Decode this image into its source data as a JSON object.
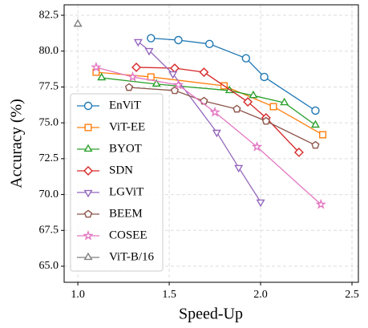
{
  "chart_data": {
    "type": "line",
    "x_label": "Speed-Up",
    "y_label": "Accuracy (%)",
    "xlim": [
      0.925,
      2.535
    ],
    "ylim": [
      63.88,
      83.23
    ],
    "xticks": [
      {
        "value": 1,
        "label": "1.0"
      },
      1.5,
      {
        "value": 2,
        "label": "2.0"
      },
      2.5
    ],
    "yticks": [
      {
        "value": 65,
        "label": "65.0"
      },
      67.5,
      {
        "value": 70,
        "label": "70.0"
      },
      72.5,
      {
        "value": 75,
        "label": "75.0"
      },
      77.5,
      {
        "value": 80,
        "label": "80.0"
      },
      82.5
    ],
    "grid": true,
    "legend": "lower left",
    "series": [
      {
        "name": "EnViT",
        "color": "#1f77b4",
        "marker": "circle",
        "x": [
          1.4,
          1.55,
          1.72,
          1.92,
          2.02,
          2.3
        ],
        "values": [
          80.9,
          80.77,
          80.5,
          79.5,
          78.2,
          75.85
        ]
      },
      {
        "name": "ViT-EE",
        "color": "#ff7f0e",
        "marker": "square",
        "x": [
          1.1,
          1.4,
          1.8,
          2.07,
          2.34
        ],
        "values": [
          78.53,
          78.2,
          77.58,
          76.13,
          74.17
        ]
      },
      {
        "name": "BYOT",
        "color": "#2ca02c",
        "marker": "triangle-up",
        "x": [
          1.13,
          1.43,
          1.83,
          1.96,
          2.13,
          2.3
        ],
        "values": [
          78.14,
          77.7,
          77.25,
          76.9,
          76.4,
          74.84
        ]
      },
      {
        "name": "SDN",
        "color": "#d62728",
        "marker": "diamond",
        "x": [
          1.32,
          1.53,
          1.69,
          1.93,
          2.03,
          2.21
        ],
        "values": [
          78.87,
          78.81,
          78.53,
          76.46,
          75.35,
          72.94
        ]
      },
      {
        "name": "LGViT",
        "color": "#9467bd",
        "marker": "triangle-down",
        "x": [
          1.33,
          1.39,
          1.52,
          1.76,
          1.88,
          2.0
        ],
        "values": [
          80.66,
          80.04,
          78.42,
          74.34,
          71.88,
          69.48
        ]
      },
      {
        "name": "BEEM",
        "color": "#8c564b",
        "marker": "pentagon",
        "x": [
          1.28,
          1.53,
          1.69,
          1.87,
          2.03,
          2.3
        ],
        "values": [
          77.47,
          77.25,
          76.52,
          75.96,
          75.12,
          73.44
        ]
      },
      {
        "name": "COSEE",
        "color": "#e377c2",
        "marker": "star",
        "x": [
          1.1,
          1.3,
          1.55,
          1.75,
          1.98,
          2.33
        ],
        "values": [
          78.87,
          78.2,
          77.64,
          75.74,
          73.33,
          69.31
        ]
      },
      {
        "name": "ViT-B/16",
        "color": "#7f7f7f",
        "marker": "triangle-up",
        "x": [
          1.0
        ],
        "values": [
          81.88
        ]
      }
    ]
  }
}
